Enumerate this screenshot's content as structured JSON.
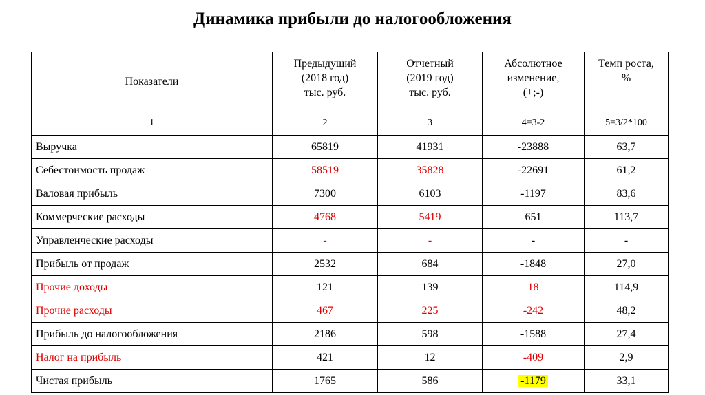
{
  "title": "Динамика прибыли до налогообложения",
  "table": {
    "header": [
      [
        "Показатели"
      ],
      [
        "Предыдущий",
        "(2018 год)",
        "тыс. руб."
      ],
      [
        "Отчетный",
        "(2019 год)",
        "тыс. руб."
      ],
      [
        "Абсолютное",
        "изменение,",
        "(+;-)"
      ],
      [
        "Темп роста,",
        "%"
      ]
    ],
    "numbering": [
      "1",
      "2",
      "3",
      "4=3-2",
      "5=3/2*100"
    ],
    "rows": [
      [
        "Выручка",
        "65819",
        "41931",
        "-23888",
        "63,7"
      ],
      [
        "Себестоимость продаж",
        "58519",
        "35828",
        "-22691",
        "61,2"
      ],
      [
        "Валовая прибыль",
        "7300",
        "6103",
        "-1197",
        "83,6"
      ],
      [
        "Коммерческие расходы",
        "4768",
        "5419",
        "651",
        "113,7"
      ],
      [
        "Управленческие расходы",
        "-",
        "-",
        "-",
        "-"
      ],
      [
        "Прибыль от продаж",
        "2532",
        "684",
        "-1848",
        "27,0"
      ],
      [
        "Прочие доходы",
        "121",
        "139",
        "18",
        "114,9"
      ],
      [
        "Прочие расходы",
        "467",
        "225",
        "-242",
        "48,2"
      ],
      [
        "Прибыль до налогообложения",
        "2186",
        "598",
        "-1588",
        "27,4"
      ],
      [
        "Налог на прибыль",
        "421",
        "12",
        "-409",
        "2,9"
      ],
      [
        "Чистая прибыль",
        "1765",
        "586",
        "-1179",
        "33,1"
      ]
    ]
  }
}
